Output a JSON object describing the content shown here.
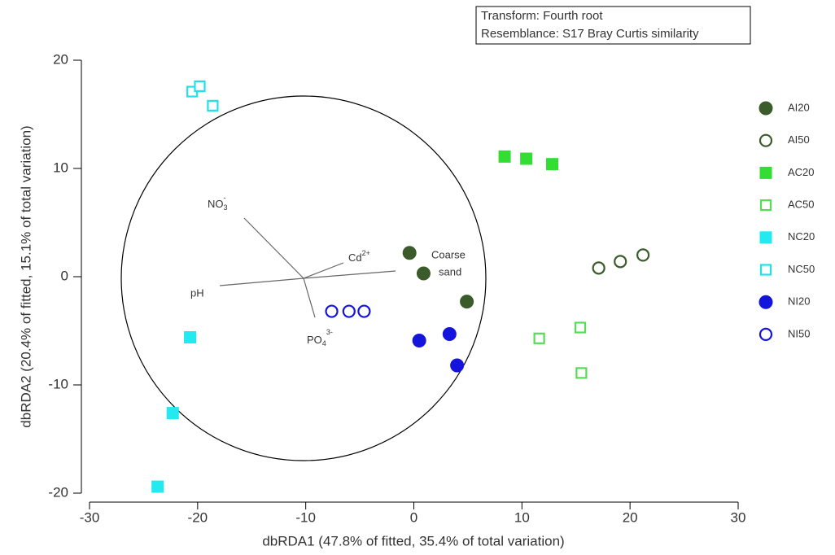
{
  "chart_data": {
    "type": "scatter",
    "annotations": [
      "Transform: Fourth root",
      "Resemblance: S17 Bray Curtis similarity"
    ],
    "x_label": "dbRDA1 (47.8% of fitted, 35.4% of total variation)",
    "y_label": "dbRDA2 (20.4% of fitted, 15.1% of total variation)",
    "xlim": [
      -30,
      30
    ],
    "xticks": [
      -30,
      -20,
      -10,
      0,
      10,
      20,
      30
    ],
    "ylim": [
      -20,
      20
    ],
    "yticks": [
      -20,
      -10,
      0,
      10,
      20
    ],
    "series": [
      {
        "name": "AI20",
        "color": "#3b5b2b",
        "marker": "circle",
        "filled": true,
        "x": [
          -0.4,
          0.9,
          4.9
        ],
        "values": [
          2.2,
          0.3,
          -2.3
        ]
      },
      {
        "name": "AI50",
        "color": "#3b5b2b",
        "marker": "circle",
        "filled": false,
        "x": [
          17.1,
          19.1,
          21.2
        ],
        "values": [
          0.8,
          1.4,
          2.0
        ]
      },
      {
        "name": "AC20",
        "color": "#33dd33",
        "marker": "square",
        "filled": true,
        "x": [
          8.4,
          10.4,
          12.8
        ],
        "values": [
          11.1,
          10.9,
          10.4
        ]
      },
      {
        "name": "AC50",
        "color": "#55dd55",
        "marker": "square",
        "filled": false,
        "x": [
          11.6,
          15.4,
          15.5
        ],
        "values": [
          -5.7,
          -4.7,
          -8.9
        ]
      },
      {
        "name": "NC20",
        "color": "#22eaf0",
        "marker": "square",
        "filled": true,
        "x": [
          -20.7,
          -22.3,
          -23.7
        ],
        "values": [
          -5.6,
          -12.6,
          -19.4
        ]
      },
      {
        "name": "NC50",
        "color": "#22e0ea",
        "marker": "square",
        "filled": false,
        "x": [
          -20.5,
          -19.8,
          -18.6
        ],
        "values": [
          17.1,
          17.6,
          15.8
        ]
      },
      {
        "name": "NI20",
        "color": "#1414dd",
        "marker": "circle",
        "filled": true,
        "x": [
          0.5,
          3.3,
          4.0
        ],
        "values": [
          -5.9,
          -5.3,
          -8.2
        ]
      },
      {
        "name": "NI50",
        "color": "#1414dd",
        "marker": "circle",
        "filled": false,
        "x": [
          -7.6,
          -6.0,
          -4.6
        ],
        "values": [
          -3.2,
          -3.2,
          -3.2
        ]
      }
    ],
    "vectors": [
      {
        "label": "NO",
        "sub": "3",
        "sup": "-"
      },
      {
        "label": "Cd",
        "sup": "2+"
      },
      {
        "lines": [
          "Coarse",
          "sand"
        ]
      },
      {
        "label": "pH"
      },
      {
        "label": "PO",
        "sub": "4",
        "sup": "3-"
      }
    ]
  }
}
